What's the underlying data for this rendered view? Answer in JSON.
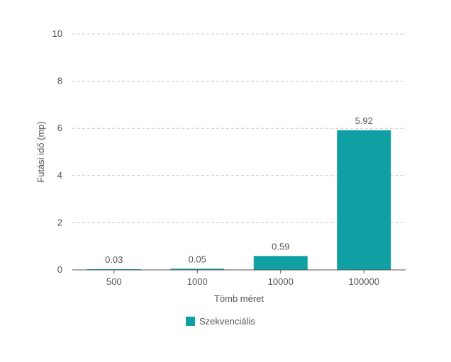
{
  "chart_data": {
    "type": "bar",
    "categories": [
      "500",
      "1000",
      "10000",
      "100000"
    ],
    "series": [
      {
        "name": "Szekvenciális",
        "values": [
          0.03,
          0.05,
          0.59,
          5.92
        ],
        "color": "#109fa3"
      }
    ],
    "data_labels": [
      "0.03",
      "0.05",
      "0.59",
      "5.92"
    ],
    "xlabel": "Tömb méret",
    "ylabel": "Futási idő (mp)",
    "ylim": [
      0,
      10
    ],
    "yticks": [
      0,
      2,
      4,
      6,
      8,
      10
    ],
    "grid": true,
    "grid_style": "dashed",
    "legend_position": "bottom-left"
  }
}
